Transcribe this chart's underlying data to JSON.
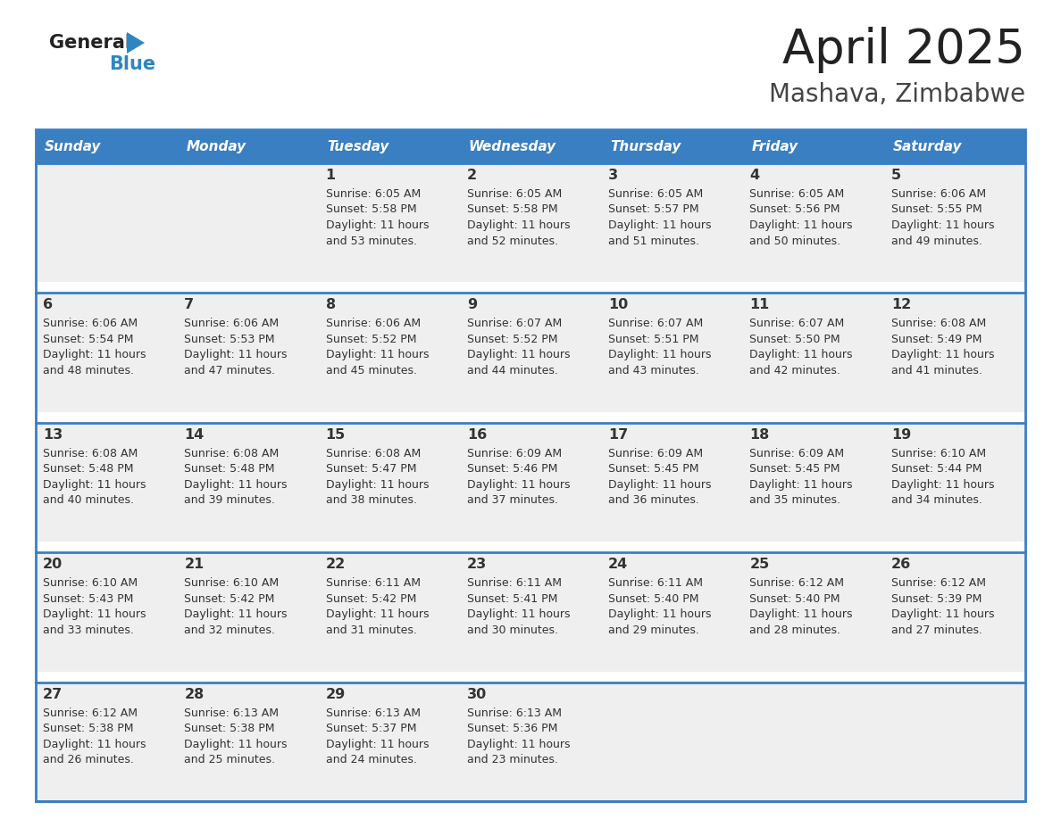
{
  "title": "April 2025",
  "subtitle": "Mashava, Zimbabwe",
  "header_color": "#3a7fc1",
  "header_text_color": "#ffffff",
  "days_of_week": [
    "Sunday",
    "Monday",
    "Tuesday",
    "Wednesday",
    "Thursday",
    "Friday",
    "Saturday"
  ],
  "cell_bg": "#efefef",
  "gap_color": "#ffffff",
  "border_color": "#3a7fc1",
  "text_color": "#333333",
  "title_color": "#222222",
  "subtitle_color": "#444444",
  "logo_text_color": "#222222",
  "logo_blue_color": "#2e86c1",
  "calendar_data": [
    [
      null,
      null,
      {
        "day": 1,
        "sunrise": "6:05 AM",
        "sunset": "5:58 PM",
        "daylight": "11 hours and 53 minutes"
      },
      {
        "day": 2,
        "sunrise": "6:05 AM",
        "sunset": "5:58 PM",
        "daylight": "11 hours and 52 minutes"
      },
      {
        "day": 3,
        "sunrise": "6:05 AM",
        "sunset": "5:57 PM",
        "daylight": "11 hours and 51 minutes"
      },
      {
        "day": 4,
        "sunrise": "6:05 AM",
        "sunset": "5:56 PM",
        "daylight": "11 hours and 50 minutes"
      },
      {
        "day": 5,
        "sunrise": "6:06 AM",
        "sunset": "5:55 PM",
        "daylight": "11 hours and 49 minutes"
      }
    ],
    [
      {
        "day": 6,
        "sunrise": "6:06 AM",
        "sunset": "5:54 PM",
        "daylight": "11 hours and 48 minutes"
      },
      {
        "day": 7,
        "sunrise": "6:06 AM",
        "sunset": "5:53 PM",
        "daylight": "11 hours and 47 minutes"
      },
      {
        "day": 8,
        "sunrise": "6:06 AM",
        "sunset": "5:52 PM",
        "daylight": "11 hours and 45 minutes"
      },
      {
        "day": 9,
        "sunrise": "6:07 AM",
        "sunset": "5:52 PM",
        "daylight": "11 hours and 44 minutes"
      },
      {
        "day": 10,
        "sunrise": "6:07 AM",
        "sunset": "5:51 PM",
        "daylight": "11 hours and 43 minutes"
      },
      {
        "day": 11,
        "sunrise": "6:07 AM",
        "sunset": "5:50 PM",
        "daylight": "11 hours and 42 minutes"
      },
      {
        "day": 12,
        "sunrise": "6:08 AM",
        "sunset": "5:49 PM",
        "daylight": "11 hours and 41 minutes"
      }
    ],
    [
      {
        "day": 13,
        "sunrise": "6:08 AM",
        "sunset": "5:48 PM",
        "daylight": "11 hours and 40 minutes"
      },
      {
        "day": 14,
        "sunrise": "6:08 AM",
        "sunset": "5:48 PM",
        "daylight": "11 hours and 39 minutes"
      },
      {
        "day": 15,
        "sunrise": "6:08 AM",
        "sunset": "5:47 PM",
        "daylight": "11 hours and 38 minutes"
      },
      {
        "day": 16,
        "sunrise": "6:09 AM",
        "sunset": "5:46 PM",
        "daylight": "11 hours and 37 minutes"
      },
      {
        "day": 17,
        "sunrise": "6:09 AM",
        "sunset": "5:45 PM",
        "daylight": "11 hours and 36 minutes"
      },
      {
        "day": 18,
        "sunrise": "6:09 AM",
        "sunset": "5:45 PM",
        "daylight": "11 hours and 35 minutes"
      },
      {
        "day": 19,
        "sunrise": "6:10 AM",
        "sunset": "5:44 PM",
        "daylight": "11 hours and 34 minutes"
      }
    ],
    [
      {
        "day": 20,
        "sunrise": "6:10 AM",
        "sunset": "5:43 PM",
        "daylight": "11 hours and 33 minutes"
      },
      {
        "day": 21,
        "sunrise": "6:10 AM",
        "sunset": "5:42 PM",
        "daylight": "11 hours and 32 minutes"
      },
      {
        "day": 22,
        "sunrise": "6:11 AM",
        "sunset": "5:42 PM",
        "daylight": "11 hours and 31 minutes"
      },
      {
        "day": 23,
        "sunrise": "6:11 AM",
        "sunset": "5:41 PM",
        "daylight": "11 hours and 30 minutes"
      },
      {
        "day": 24,
        "sunrise": "6:11 AM",
        "sunset": "5:40 PM",
        "daylight": "11 hours and 29 minutes"
      },
      {
        "day": 25,
        "sunrise": "6:12 AM",
        "sunset": "5:40 PM",
        "daylight": "11 hours and 28 minutes"
      },
      {
        "day": 26,
        "sunrise": "6:12 AM",
        "sunset": "5:39 PM",
        "daylight": "11 hours and 27 minutes"
      }
    ],
    [
      {
        "day": 27,
        "sunrise": "6:12 AM",
        "sunset": "5:38 PM",
        "daylight": "11 hours and 26 minutes"
      },
      {
        "day": 28,
        "sunrise": "6:13 AM",
        "sunset": "5:38 PM",
        "daylight": "11 hours and 25 minutes"
      },
      {
        "day": 29,
        "sunrise": "6:13 AM",
        "sunset": "5:37 PM",
        "daylight": "11 hours and 24 minutes"
      },
      {
        "day": 30,
        "sunrise": "6:13 AM",
        "sunset": "5:36 PM",
        "daylight": "11 hours and 23 minutes"
      },
      null,
      null,
      null
    ]
  ]
}
